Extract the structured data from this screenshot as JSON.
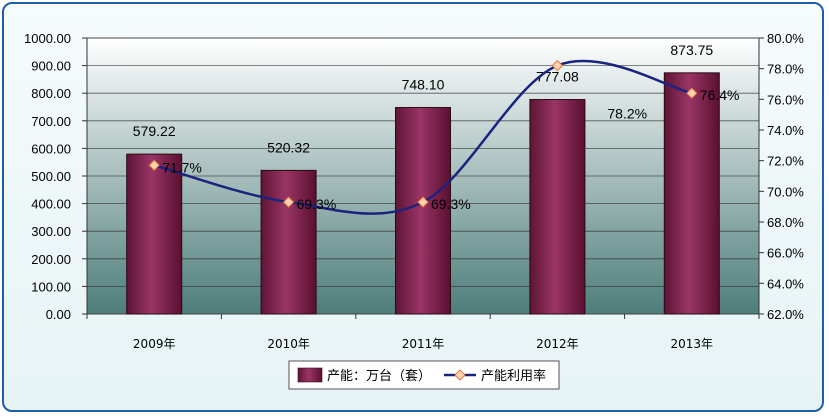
{
  "chart_data": {
    "type": "bar",
    "title": "",
    "categories": [
      "2009年",
      "2010年",
      "2011年",
      "2012年",
      "2013年"
    ],
    "series": [
      {
        "name": "产能：万台（套）",
        "type": "bar",
        "axis": "left",
        "values": [
          579.22,
          520.32,
          748.1,
          777.08,
          873.75
        ],
        "labels": [
          "579.22",
          "520.32",
          "748.10",
          "777.08",
          "873.75"
        ],
        "color": "#7b1f4a"
      },
      {
        "name": "产能利用率",
        "type": "line",
        "axis": "right",
        "values": [
          71.7,
          69.3,
          69.3,
          78.2,
          76.4
        ],
        "labels": [
          "71.7%",
          "69.3%",
          "69.3%",
          "78.2%",
          "76.4%"
        ],
        "color": "#1a237e",
        "marker_color": "#f4a261"
      }
    ],
    "y_left": {
      "lim": [
        0,
        1000
      ],
      "ticks": [
        "0.00",
        "100.00",
        "200.00",
        "300.00",
        "400.00",
        "500.00",
        "600.00",
        "700.00",
        "800.00",
        "900.00",
        "1000.00"
      ]
    },
    "y_right": {
      "lim": [
        62,
        80
      ],
      "ticks": [
        "62.0%",
        "64.0%",
        "66.0%",
        "68.0%",
        "70.0%",
        "72.0%",
        "74.0%",
        "76.0%",
        "78.0%",
        "80.0%"
      ]
    },
    "grid": true,
    "legend": "bottom",
    "plot_background": [
      "#ffffff",
      "#4d7d7a"
    ]
  }
}
